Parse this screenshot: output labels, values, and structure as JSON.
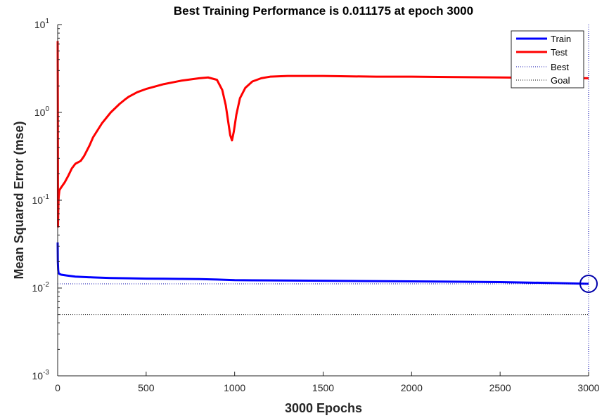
{
  "chart_data": {
    "type": "line",
    "title": "Best Training Performance is 0.011175 at epoch 3000",
    "xlabel": "3000 Epochs",
    "ylabel": "Mean Squared Error  (mse)",
    "xlim": [
      0,
      3000
    ],
    "ylim": [
      0.001,
      10
    ],
    "yscale": "log",
    "x_ticks": [
      "0",
      "500",
      "1000",
      "1500",
      "2000",
      "2500",
      "3000"
    ],
    "y_ticks": [
      {
        "base": "10",
        "exp": "1"
      },
      {
        "base": "10",
        "exp": "0"
      },
      {
        "base": "10",
        "exp": "-1"
      },
      {
        "base": "10",
        "exp": "-2"
      },
      {
        "base": "10",
        "exp": "-3"
      }
    ],
    "legend_position": "top-right",
    "grid": false,
    "series": [
      {
        "name": "Train",
        "color": "#0000ff",
        "style": "solid",
        "x": [
          0,
          1,
          3,
          5,
          10,
          20,
          50,
          100,
          200,
          300,
          400,
          500,
          600,
          700,
          800,
          900,
          1000,
          1100,
          1500,
          2000,
          2500,
          2800,
          3000
        ],
        "y": [
          0.033,
          0.02,
          0.016,
          0.0148,
          0.0145,
          0.0142,
          0.0139,
          0.0135,
          0.0132,
          0.013,
          0.0129,
          0.0128,
          0.01275,
          0.0127,
          0.01265,
          0.0125,
          0.0123,
          0.01225,
          0.0121,
          0.0119,
          0.0117,
          0.0114,
          0.011175
        ]
      },
      {
        "name": "Test",
        "color": "#ff0000",
        "style": "solid",
        "x": [
          0,
          1,
          2,
          4,
          6,
          10,
          20,
          40,
          60,
          80,
          100,
          130,
          150,
          180,
          200,
          250,
          300,
          350,
          380,
          400,
          450,
          500,
          600,
          700,
          800,
          850,
          900,
          930,
          950,
          965,
          975,
          985,
          995,
          1010,
          1030,
          1060,
          1100,
          1150,
          1200,
          1300,
          1500,
          1800,
          2000,
          2500,
          3000
        ],
        "y": [
          6.5,
          1.2,
          0.05,
          0.09,
          0.11,
          0.13,
          0.14,
          0.16,
          0.19,
          0.23,
          0.26,
          0.28,
          0.32,
          0.42,
          0.52,
          0.75,
          1.0,
          1.25,
          1.4,
          1.5,
          1.7,
          1.85,
          2.1,
          2.3,
          2.45,
          2.5,
          2.35,
          1.8,
          1.2,
          0.75,
          0.55,
          0.48,
          0.6,
          0.95,
          1.45,
          1.9,
          2.25,
          2.45,
          2.55,
          2.6,
          2.6,
          2.55,
          2.55,
          2.5,
          2.45
        ]
      },
      {
        "name": "Best",
        "color": "#0000aa",
        "style": "dotted",
        "hline": 0.011175,
        "vline": 3000
      },
      {
        "name": "Goal",
        "color": "#000000",
        "style": "dotted",
        "hline": 0.005
      }
    ],
    "best_point": {
      "x": 3000,
      "y": 0.011175
    }
  }
}
